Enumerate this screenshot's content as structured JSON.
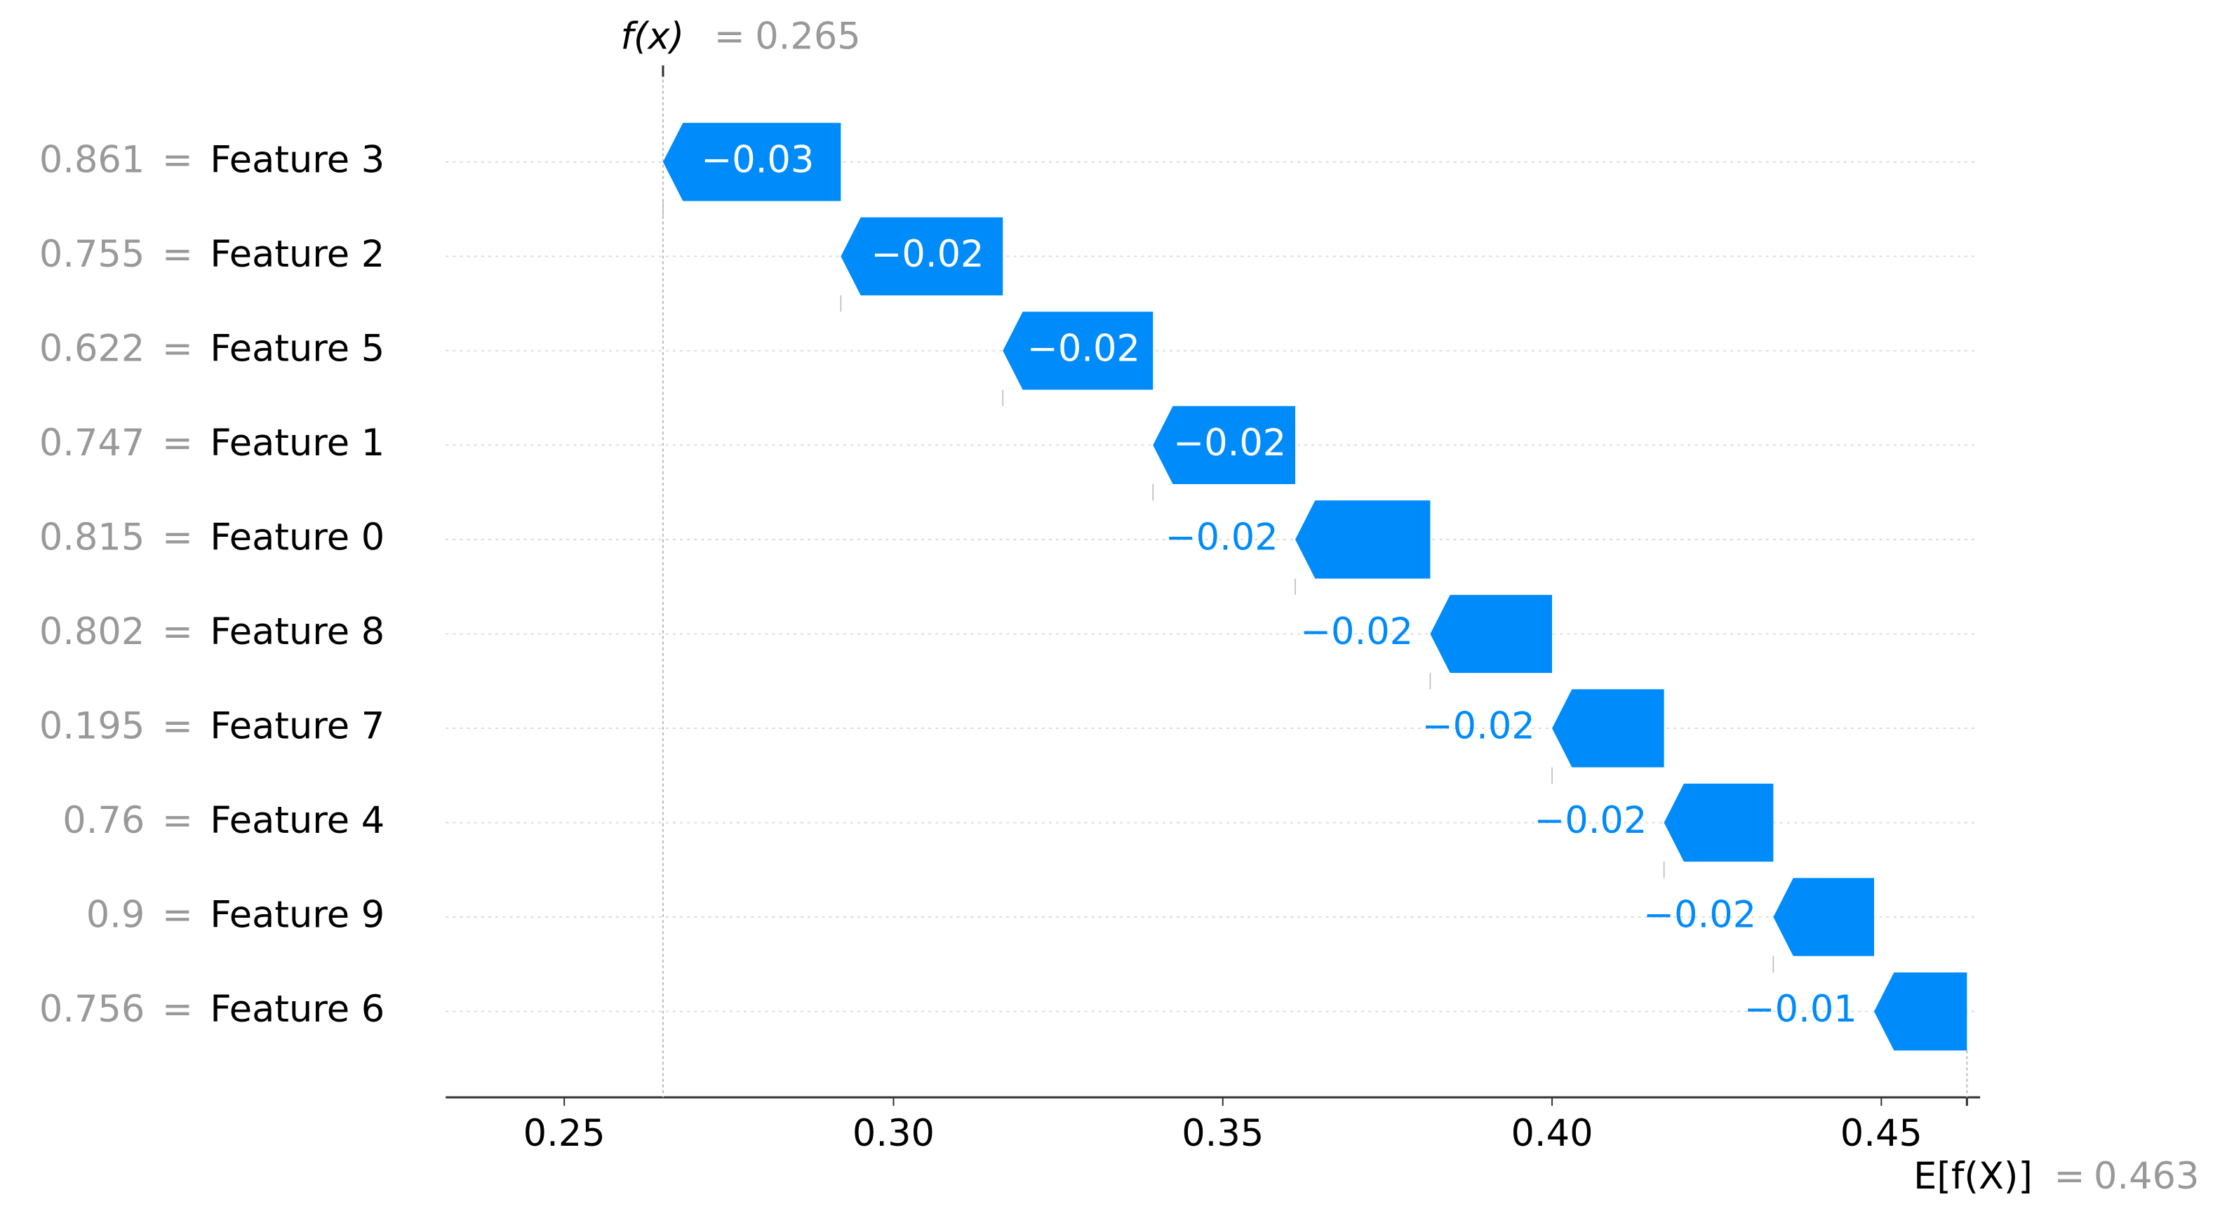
{
  "chart_data": {
    "type": "waterfall",
    "fx_label": "f(x)",
    "fx": 0.265,
    "base_label": "E[f(X)]",
    "base_value": 0.463,
    "separator": "=",
    "categories": [
      "Feature 3",
      "Feature 2",
      "Feature 5",
      "Feature 1",
      "Feature 0",
      "Feature 8",
      "Feature 7",
      "Feature 4",
      "Feature 9",
      "Feature 6"
    ],
    "feature_values": [
      0.861,
      0.755,
      0.622,
      0.747,
      0.815,
      0.802,
      0.195,
      0.76,
      0.9,
      0.756
    ],
    "values": [
      -0.027,
      -0.0246,
      -0.0228,
      -0.0216,
      -0.0205,
      -0.0185,
      -0.017,
      -0.0166,
      -0.0153,
      -0.0141
    ],
    "value_labels": [
      "−0.03",
      "−0.02",
      "−0.02",
      "−0.02",
      "−0.02",
      "−0.02",
      "−0.02",
      "−0.02",
      "−0.02",
      "−0.01"
    ],
    "color": "#008bfb",
    "xlim": [
      0.232,
      0.465
    ],
    "xticks": [
      0.25,
      {
        "value": 0.3,
        "label": "0.30"
      },
      0.35,
      {
        "value": 0.4,
        "label": "0.40"
      },
      0.45
    ]
  }
}
